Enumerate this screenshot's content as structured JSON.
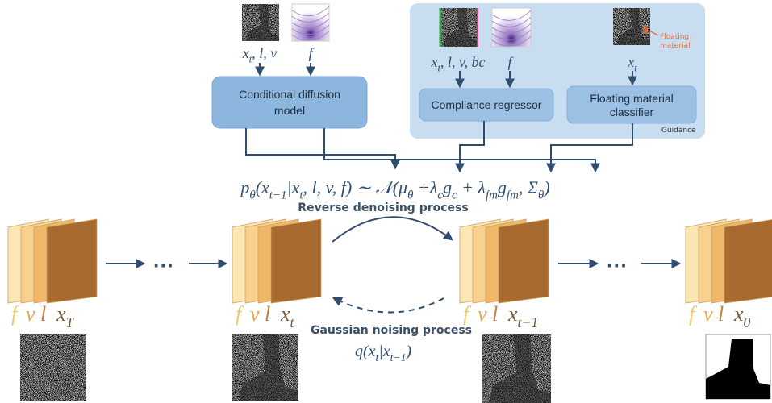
{
  "condition_inputs": {
    "state": [
      {
        "text": "x",
        "sub": "t"
      },
      {
        "text": ", l, v"
      }
    ],
    "field": [
      {
        "text": "f"
      }
    ]
  },
  "conditional_model": [
    "Conditional diffusion",
    "model"
  ],
  "guidance": {
    "label": "Guidance",
    "regressor_inputs": {
      "state": [
        {
          "text": "x",
          "sub": "t"
        },
        {
          "text": ", l, v, bc"
        }
      ],
      "field": [
        {
          "text": "f"
        }
      ]
    },
    "regressor": "Compliance regressor",
    "classifier_input": [
      {
        "text": "x",
        "sub": "t"
      }
    ],
    "annotation": [
      "Floating",
      "material"
    ],
    "classifier": [
      "Floating material",
      "classifier"
    ]
  },
  "formula": [
    {
      "text": "p",
      "sub": "θ"
    },
    {
      "text": "(x",
      "sub": "t−1"
    },
    {
      "text": "|x",
      "sub": "t"
    },
    {
      "text": ", l, v, f) ∼ 𝒩(μ",
      "sub": "θ"
    },
    {
      "text": " +λ",
      "sub": "c"
    },
    {
      "text": "g",
      "sub": "c"
    },
    {
      "text": " + λ",
      "sub": "fm"
    },
    {
      "text": "g",
      "sub": "fm"
    },
    {
      "text": ", Σ",
      "sub": "θ"
    },
    {
      "text": ")"
    }
  ],
  "reverse_label": "Reverse denoising process",
  "forward_label": "Gaussian noising process",
  "forward_formula": [
    {
      "text": "q(x",
      "sub": "t"
    },
    {
      "text": "|x",
      "sub": "t−1"
    },
    {
      "text": ")"
    }
  ],
  "ellipsis": "···",
  "stacks": [
    {
      "channels": [
        "f",
        "v",
        "l"
      ],
      "state": [
        {
          "text": "x",
          "sub": "T"
        }
      ]
    },
    {
      "channels": [
        "f",
        "v",
        "l"
      ],
      "state": [
        {
          "text": "x",
          "sub": "t"
        }
      ]
    },
    {
      "channels": [
        "f",
        "v",
        "l"
      ],
      "state": [
        {
          "text": "x",
          "sub": "t−1"
        }
      ]
    },
    {
      "channels": [
        "f",
        "v",
        "l"
      ],
      "state": [
        {
          "text": "x",
          "sub": "0"
        }
      ]
    }
  ]
}
